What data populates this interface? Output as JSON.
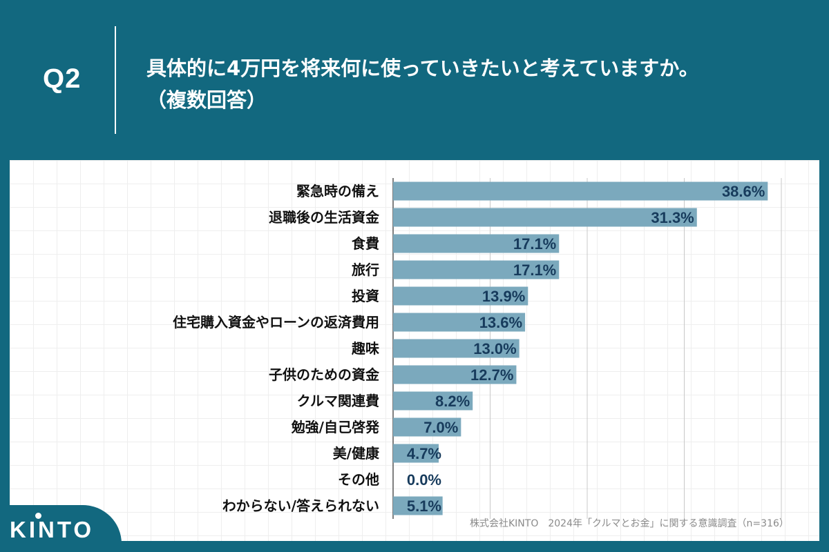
{
  "header": {
    "question_label": "Q2",
    "question_line1": "具体的に4万円を将来何に使っていきたいと考えていますか。",
    "question_line2": "（複数回答）"
  },
  "colors": {
    "background": "#12687f",
    "bar": "#7ba9bd",
    "value_text": "#173b5c"
  },
  "chart_data": {
    "type": "bar",
    "orientation": "horizontal",
    "title": "具体的に4万円を将来何に使っていきたいと考えていますか。（複数回答）",
    "categories": [
      "緊急時の備え",
      "退職後の生活資金",
      "食費",
      "旅行",
      "投資",
      "住宅購入資金やローンの返済費用",
      "趣味",
      "子供のための資金",
      "クルマ関連費",
      "勉強/自己啓発",
      "美/健康",
      "その他",
      "わからない/答えられない"
    ],
    "values": [
      38.6,
      31.3,
      17.1,
      17.1,
      13.9,
      13.6,
      13.0,
      12.7,
      8.2,
      7.0,
      4.7,
      0.0,
      5.1
    ],
    "value_labels": [
      "38.6%",
      "31.3%",
      "17.1%",
      "17.1%",
      "13.9%",
      "13.6%",
      "13.0%",
      "12.7%",
      "8.2%",
      "7.0%",
      "4.7%",
      "0.0%",
      "5.1%"
    ],
    "unit": "%",
    "xlim": [
      0,
      40
    ],
    "gridlines": [
      0,
      10,
      20,
      30,
      40
    ],
    "grid": true,
    "legend": "none"
  },
  "footnote": "株式会社KINTO　2024年「クルマとお金」に関する意識調査（n=316）",
  "brand": {
    "logo_text": "KINTO"
  }
}
